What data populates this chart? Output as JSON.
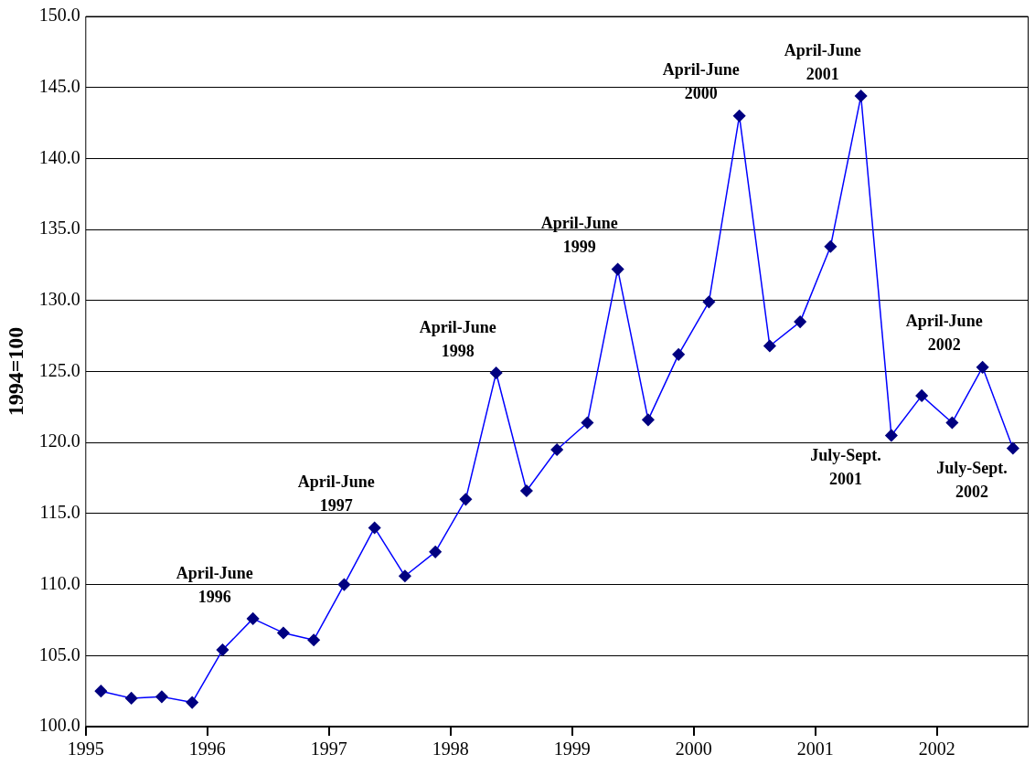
{
  "chart_data": {
    "type": "line",
    "ylabel": "1994=100",
    "x": [
      1995.125,
      1995.375,
      1995.625,
      1995.875,
      1996.125,
      1996.375,
      1996.625,
      1996.875,
      1997.125,
      1997.375,
      1997.625,
      1997.875,
      1998.125,
      1998.375,
      1998.625,
      1998.875,
      1999.125,
      1999.375,
      1999.625,
      1999.875,
      2000.125,
      2000.375,
      2000.625,
      2000.875,
      2001.125,
      2001.375,
      2001.625,
      2001.875,
      2002.125,
      2002.375,
      2002.625
    ],
    "series": [
      {
        "color": "#0000ff",
        "values": [
          102.5,
          102.0,
          102.1,
          101.7,
          105.4,
          107.6,
          106.6,
          106.1,
          110.0,
          114.0,
          110.6,
          112.3,
          116.0,
          124.9,
          116.6,
          119.5,
          121.4,
          132.2,
          121.6,
          126.2,
          129.9,
          143.0,
          126.8,
          128.5,
          133.8,
          144.4,
          120.5,
          123.3,
          121.4,
          125.3,
          119.6
        ]
      }
    ],
    "xlim": [
      1995,
      2002.75
    ],
    "xticks": [
      1995,
      1996,
      1997,
      1998,
      1999,
      2000,
      2001,
      2002
    ],
    "ylim": [
      100,
      150
    ],
    "yticks": [
      {
        "value": 100,
        "label": "100.0"
      },
      {
        "value": 105,
        "label": "105.0"
      },
      {
        "value": 110,
        "label": "110.0"
      },
      {
        "value": 115,
        "label": "115.0"
      },
      {
        "value": 120,
        "label": "120.0"
      },
      {
        "value": 125,
        "label": "125.0"
      },
      {
        "value": 130,
        "label": "130.0"
      },
      {
        "value": 135,
        "label": "135.0"
      },
      {
        "value": 140,
        "label": "140.0"
      },
      {
        "value": 145,
        "label": "145.0"
      },
      {
        "value": 150,
        "label": "150.0"
      }
    ],
    "grid": "y",
    "legend": false,
    "marker": "diamond",
    "line_style": "solid",
    "annotations": [
      {
        "text": "April-June\n1996",
        "x": 1996.375,
        "y": 107.6
      },
      {
        "text": "April-June\n1997",
        "x": 1997.375,
        "y": 114.0
      },
      {
        "text": "April-June\n1998",
        "x": 1998.375,
        "y": 124.9
      },
      {
        "text": "April-June\n1999",
        "x": 1999.375,
        "y": 132.2
      },
      {
        "text": "April-June\n2000",
        "x": 2000.375,
        "y": 143.0
      },
      {
        "text": "April-June\n2001",
        "x": 2001.375,
        "y": 144.4
      },
      {
        "text": "July-Sept.\n2001",
        "x": 2001.625,
        "y": 120.5
      },
      {
        "text": "April-June\n2002",
        "x": 2002.375,
        "y": 125.3
      },
      {
        "text": "July-Sept.\n2002",
        "x": 2002.625,
        "y": 119.6
      }
    ]
  }
}
